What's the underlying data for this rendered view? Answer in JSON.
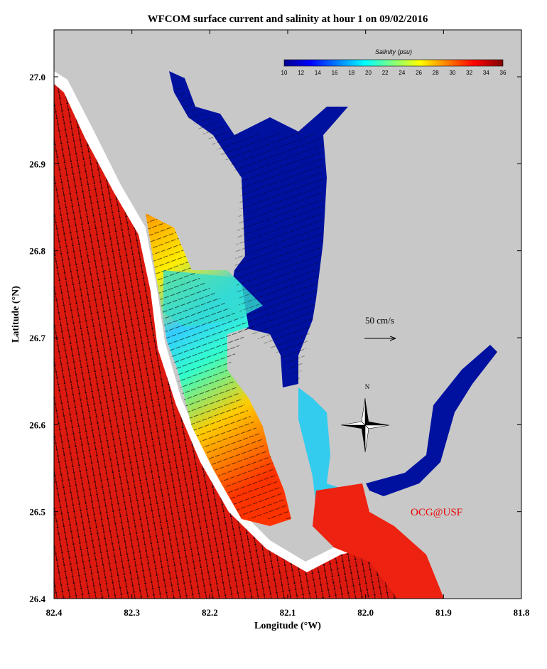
{
  "title": "WFCOM surface current and salinity at hour 1 on 09/02/2016",
  "map": {
    "xlabel": "Longitude (°W)",
    "ylabel": "Latitude (°N)",
    "xticks": [
      "82.4",
      "82.3",
      "82.2",
      "82.1",
      "82.0",
      "81.9",
      "81.8"
    ],
    "yticks": [
      "27.0",
      "26.9",
      "26.8",
      "26.7",
      "26.6",
      "26.5",
      "26.4"
    ]
  },
  "colorbar": {
    "title": "Salinity (psu)",
    "ticks": [
      "10",
      "12",
      "14",
      "16",
      "18",
      "20",
      "22",
      "24",
      "26",
      "28",
      "30",
      "32",
      "34",
      "36"
    ]
  },
  "scale_label": "50 cm/s",
  "north_label": "N",
  "credit": "OCG@USF"
}
